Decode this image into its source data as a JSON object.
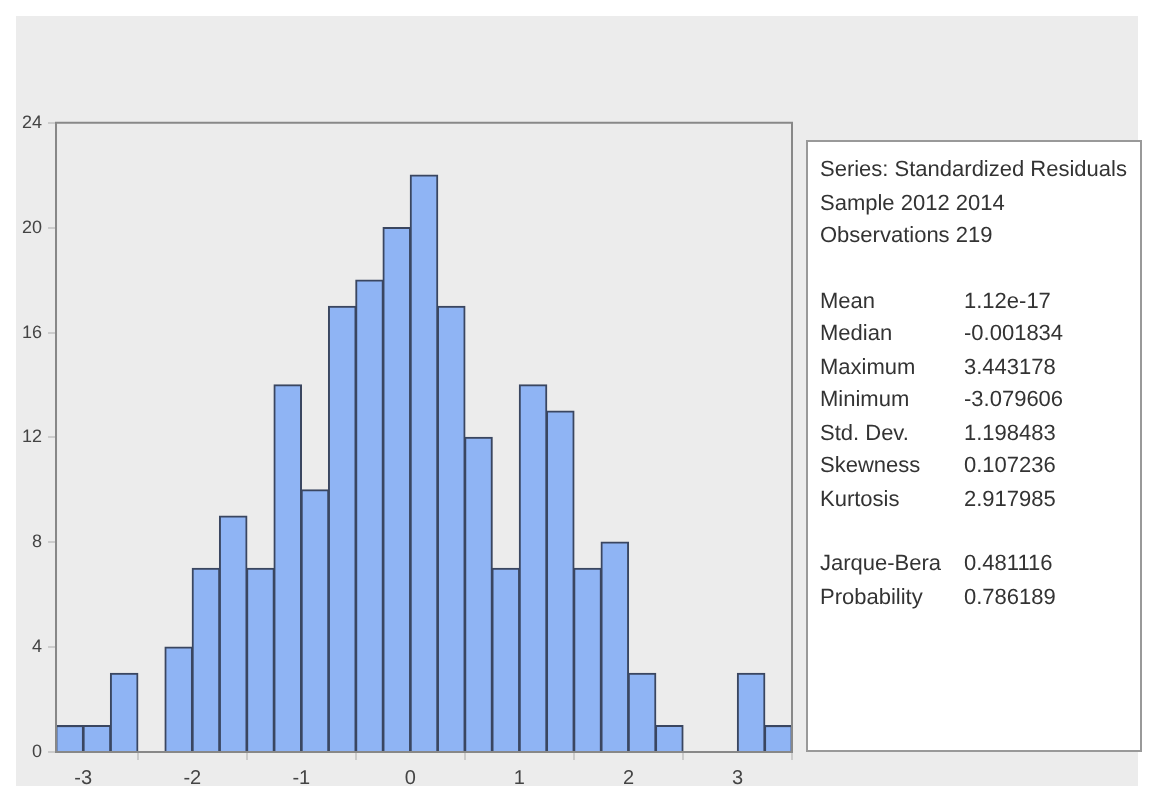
{
  "chart_data": {
    "type": "histogram",
    "bins": [
      -3.25,
      -3,
      -2.75,
      -2.5,
      -2.25,
      -2,
      -1.75,
      -1.5,
      -1.25,
      -1,
      -0.75,
      -0.5,
      -0.25,
      0,
      0.25,
      0.5,
      0.75,
      1,
      1.25,
      1.5,
      1.75,
      2,
      2.25,
      2.5,
      2.75,
      3,
      3.25,
      3.5
    ],
    "values": [
      1,
      1,
      3,
      0,
      4,
      7,
      9,
      7,
      14,
      10,
      17,
      18,
      20,
      22,
      17,
      12,
      7,
      14,
      13,
      7,
      8,
      3,
      1,
      0,
      0,
      3,
      1
    ],
    "color": "#8fb4f4",
    "xlim": [
      -3.25,
      3.5
    ],
    "xticks": [
      -3,
      -2,
      -1,
      0,
      1,
      2,
      3
    ],
    "ylim": [
      0,
      24
    ],
    "yticks": [
      0,
      4,
      8,
      12,
      16,
      20,
      24
    ],
    "grid": false,
    "legend": false,
    "annotations": [
      "Series: Standardized Residuals",
      "Sample 2012 2014",
      "Observations 219",
      "Mean 1.12e-17",
      "Median -0.001834",
      "Maximum 3.443178",
      "Minimum -3.079606",
      "Std. Dev. 1.198483",
      "Skewness 0.107236",
      "Kurtosis 2.917985",
      "Jarque-Bera 0.481116",
      "Probability 0.786189"
    ]
  }
}
